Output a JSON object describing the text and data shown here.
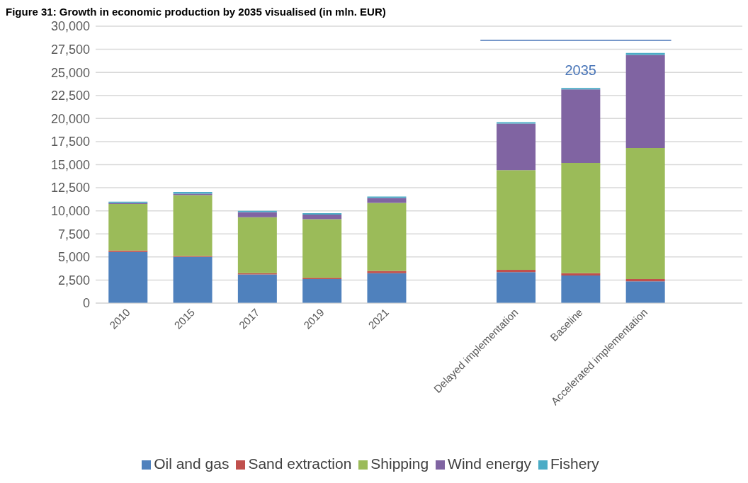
{
  "chart_data": {
    "type": "bar",
    "title": "Figure 31: Growth in economic production by 2035 visualised (in mln. EUR)",
    "stacked": true,
    "categories": [
      "2010",
      "2015",
      "2017",
      "2019",
      "2021",
      null,
      "Delayed implementation",
      "Baseline",
      "Accelerated implementation",
      null
    ],
    "series": [
      {
        "name": "Oil and gas",
        "color": "#4f81bd",
        "values": [
          5550,
          5000,
          3100,
          2600,
          3250,
          null,
          3350,
          3000,
          2350,
          null
        ]
      },
      {
        "name": "Sand extraction",
        "color": "#c0504d",
        "values": [
          150,
          100,
          150,
          150,
          250,
          null,
          250,
          250,
          250,
          null
        ]
      },
      {
        "name": "Shipping",
        "color": "#9bbb59",
        "values": [
          5050,
          6600,
          6050,
          6350,
          7350,
          null,
          10800,
          11950,
          14200,
          null
        ]
      },
      {
        "name": "Wind energy",
        "color": "#8064a2",
        "values": [
          100,
          150,
          550,
          500,
          550,
          null,
          5050,
          7950,
          10100,
          null
        ]
      },
      {
        "name": "Fishery",
        "color": "#4bacc6",
        "values": [
          150,
          200,
          150,
          150,
          150,
          null,
          150,
          150,
          200,
          null
        ]
      }
    ],
    "ylim": [
      0,
      30000
    ],
    "yticks": [
      {
        "value": 0,
        "label": "0"
      },
      {
        "value": 2500,
        "label": "2,500"
      },
      {
        "value": 5000,
        "label": "5,000"
      },
      {
        "value": 7500,
        "label": "7,500"
      },
      {
        "value": 10000,
        "label": "10,000"
      },
      {
        "value": 12500,
        "label": "12,500"
      },
      {
        "value": 15000,
        "label": "15,000"
      },
      {
        "value": 17500,
        "label": "17,500"
      },
      {
        "value": 20000,
        "label": "20,000"
      },
      {
        "value": 22500,
        "label": "22,500"
      },
      {
        "value": 25000,
        "label": "25,000"
      },
      {
        "value": 27500,
        "label": "27,500"
      },
      {
        "value": 30000,
        "label": "30,000"
      }
    ],
    "grid": "y",
    "legend": "bottom",
    "annotations": [
      "2035"
    ]
  }
}
